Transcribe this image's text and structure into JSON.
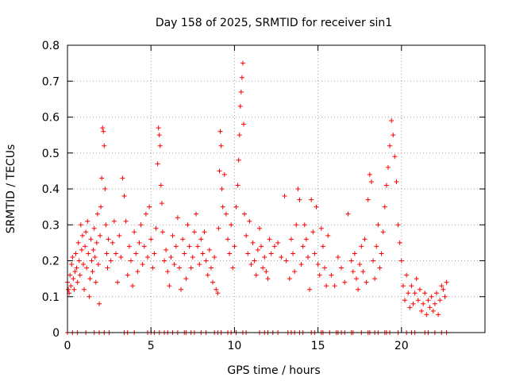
{
  "chart_data": {
    "type": "scatter",
    "title": "Day 158 of 2025, SRMTID for receiver sin1",
    "xlabel": "GPS time / hours",
    "ylabel": "SRMTID / TECUs",
    "xlim": [
      0,
      25
    ],
    "ylim": [
      0,
      0.8
    ],
    "xticks": [
      0,
      5,
      10,
      15,
      20
    ],
    "yticks": [
      0,
      0.1,
      0.2,
      0.3,
      0.4,
      0.5,
      0.6,
      0.7,
      0.8
    ],
    "xtick_labels": [
      "0",
      "5",
      "10",
      "15",
      "20"
    ],
    "ytick_labels": [
      "0",
      "0.1",
      "0.2",
      "0.3",
      "0.4",
      "0.5",
      "0.6",
      "0.7",
      "0.8"
    ],
    "grid": true,
    "marker": "+",
    "series": [
      {
        "name": "SRMTID",
        "color": "#ff0000",
        "points": [
          [
            0.0,
            0.14
          ],
          [
            0.05,
            0.12
          ],
          [
            0.1,
            0.11
          ],
          [
            0.15,
            0.16
          ],
          [
            0.2,
            0.13
          ],
          [
            0.25,
            0.19
          ],
          [
            0.3,
            0.21
          ],
          [
            0.35,
            0.15
          ],
          [
            0.4,
            0.12
          ],
          [
            0.45,
            0.17
          ],
          [
            0.5,
            0.22
          ],
          [
            0.55,
            0.18
          ],
          [
            0.6,
            0.14
          ],
          [
            0.65,
            0.25
          ],
          [
            0.7,
            0.2
          ],
          [
            0.75,
            0.16
          ],
          [
            0.8,
            0.3
          ],
          [
            0.85,
            0.23
          ],
          [
            0.9,
            0.27
          ],
          [
            0.95,
            0.19
          ],
          [
            1.0,
            0.12
          ],
          [
            1.05,
            0.24
          ],
          [
            1.1,
            0.28
          ],
          [
            1.15,
            0.18
          ],
          [
            1.2,
            0.31
          ],
          [
            1.25,
            0.22
          ],
          [
            1.3,
            0.1
          ],
          [
            1.35,
            0.15
          ],
          [
            1.4,
            0.26
          ],
          [
            1.45,
            0.2
          ],
          [
            1.5,
            0.17
          ],
          [
            1.55,
            0.23
          ],
          [
            1.6,
            0.29
          ],
          [
            1.65,
            0.21
          ],
          [
            1.7,
            0.14
          ],
          [
            1.75,
            0.25
          ],
          [
            1.8,
            0.33
          ],
          [
            1.85,
            0.19
          ],
          [
            1.9,
            0.08
          ],
          [
            1.95,
            0.27
          ],
          [
            2.0,
            0.35
          ],
          [
            2.05,
            0.43
          ],
          [
            2.1,
            0.57
          ],
          [
            2.15,
            0.56
          ],
          [
            2.2,
            0.52
          ],
          [
            2.25,
            0.4
          ],
          [
            2.3,
            0.3
          ],
          [
            2.35,
            0.22
          ],
          [
            2.4,
            0.18
          ],
          [
            2.45,
            0.26
          ],
          [
            2.6,
            0.2
          ],
          [
            2.7,
            0.25
          ],
          [
            2.8,
            0.31
          ],
          [
            2.9,
            0.22
          ],
          [
            3.0,
            0.14
          ],
          [
            3.1,
            0.27
          ],
          [
            3.2,
            0.21
          ],
          [
            3.3,
            0.43
          ],
          [
            3.4,
            0.38
          ],
          [
            3.5,
            0.31
          ],
          [
            3.6,
            0.16
          ],
          [
            3.7,
            0.24
          ],
          [
            3.8,
            0.2
          ],
          [
            3.9,
            0.13
          ],
          [
            4.0,
            0.28
          ],
          [
            4.1,
            0.22
          ],
          [
            4.2,
            0.17
          ],
          [
            4.3,
            0.25
          ],
          [
            4.4,
            0.3
          ],
          [
            4.5,
            0.19
          ],
          [
            4.6,
            0.24
          ],
          [
            4.7,
            0.33
          ],
          [
            4.8,
            0.21
          ],
          [
            4.9,
            0.35
          ],
          [
            5.0,
            0.26
          ],
          [
            5.1,
            0.18
          ],
          [
            5.2,
            0.22
          ],
          [
            5.3,
            0.29
          ],
          [
            5.4,
            0.47
          ],
          [
            5.45,
            0.57
          ],
          [
            5.5,
            0.55
          ],
          [
            5.55,
            0.52
          ],
          [
            5.6,
            0.41
          ],
          [
            5.65,
            0.36
          ],
          [
            5.7,
            0.28
          ],
          [
            5.8,
            0.2
          ],
          [
            5.9,
            0.23
          ],
          [
            6.0,
            0.17
          ],
          [
            6.1,
            0.13
          ],
          [
            6.2,
            0.21
          ],
          [
            6.3,
            0.27
          ],
          [
            6.4,
            0.19
          ],
          [
            6.5,
            0.24
          ],
          [
            6.6,
            0.32
          ],
          [
            6.7,
            0.18
          ],
          [
            6.8,
            0.12
          ],
          [
            6.9,
            0.26
          ],
          [
            7.0,
            0.22
          ],
          [
            7.1,
            0.15
          ],
          [
            7.2,
            0.3
          ],
          [
            7.3,
            0.24
          ],
          [
            7.4,
            0.18
          ],
          [
            7.5,
            0.21
          ],
          [
            7.6,
            0.28
          ],
          [
            7.7,
            0.33
          ],
          [
            7.8,
            0.24
          ],
          [
            7.9,
            0.19
          ],
          [
            8.0,
            0.26
          ],
          [
            8.1,
            0.22
          ],
          [
            8.2,
            0.28
          ],
          [
            8.3,
            0.2
          ],
          [
            8.4,
            0.16
          ],
          [
            8.5,
            0.23
          ],
          [
            8.6,
            0.18
          ],
          [
            8.7,
            0.14
          ],
          [
            8.8,
            0.21
          ],
          [
            8.9,
            0.12
          ],
          [
            9.0,
            0.11
          ],
          [
            9.05,
            0.29
          ],
          [
            9.1,
            0.45
          ],
          [
            9.15,
            0.56
          ],
          [
            9.2,
            0.52
          ],
          [
            9.25,
            0.4
          ],
          [
            9.3,
            0.35
          ],
          [
            9.4,
            0.44
          ],
          [
            9.5,
            0.33
          ],
          [
            9.6,
            0.26
          ],
          [
            9.7,
            0.22
          ],
          [
            9.8,
            0.3
          ],
          [
            9.9,
            0.18
          ],
          [
            10.0,
            0.24
          ],
          [
            10.1,
            0.35
          ],
          [
            10.2,
            0.41
          ],
          [
            10.25,
            0.48
          ],
          [
            10.3,
            0.55
          ],
          [
            10.35,
            0.63
          ],
          [
            10.4,
            0.67
          ],
          [
            10.45,
            0.71
          ],
          [
            10.5,
            0.75
          ],
          [
            10.55,
            0.58
          ],
          [
            10.6,
            0.33
          ],
          [
            10.7,
            0.27
          ],
          [
            10.8,
            0.22
          ],
          [
            10.9,
            0.31
          ],
          [
            11.0,
            0.19
          ],
          [
            11.1,
            0.25
          ],
          [
            11.2,
            0.2
          ],
          [
            11.3,
            0.16
          ],
          [
            11.4,
            0.23
          ],
          [
            11.5,
            0.29
          ],
          [
            11.6,
            0.24
          ],
          [
            11.7,
            0.18
          ],
          [
            11.8,
            0.21
          ],
          [
            11.9,
            0.17
          ],
          [
            12.0,
            0.15
          ],
          [
            12.1,
            0.26
          ],
          [
            12.2,
            0.22
          ],
          [
            12.4,
            0.24
          ],
          [
            12.6,
            0.25
          ],
          [
            12.8,
            0.21
          ],
          [
            13.0,
            0.38
          ],
          [
            13.1,
            0.2
          ],
          [
            13.3,
            0.15
          ],
          [
            13.4,
            0.26
          ],
          [
            13.5,
            0.22
          ],
          [
            13.6,
            0.17
          ],
          [
            13.7,
            0.3
          ],
          [
            13.8,
            0.4
          ],
          [
            13.9,
            0.37
          ],
          [
            14.0,
            0.19
          ],
          [
            14.1,
            0.24
          ],
          [
            14.2,
            0.3
          ],
          [
            14.3,
            0.26
          ],
          [
            14.4,
            0.21
          ],
          [
            14.5,
            0.12
          ],
          [
            14.6,
            0.37
          ],
          [
            14.7,
            0.28
          ],
          [
            14.8,
            0.22
          ],
          [
            14.9,
            0.35
          ],
          [
            15.0,
            0.19
          ],
          [
            15.1,
            0.16
          ],
          [
            15.2,
            0.29
          ],
          [
            15.3,
            0.24
          ],
          [
            15.4,
            0.18
          ],
          [
            15.5,
            0.13
          ],
          [
            15.6,
            0.27
          ],
          [
            15.8,
            0.16
          ],
          [
            16.0,
            0.13
          ],
          [
            16.2,
            0.21
          ],
          [
            16.4,
            0.18
          ],
          [
            16.6,
            0.14
          ],
          [
            16.8,
            0.33
          ],
          [
            17.0,
            0.2
          ],
          [
            17.1,
            0.17
          ],
          [
            17.2,
            0.22
          ],
          [
            17.3,
            0.15
          ],
          [
            17.4,
            0.12
          ],
          [
            17.5,
            0.19
          ],
          [
            17.6,
            0.24
          ],
          [
            17.7,
            0.17
          ],
          [
            17.8,
            0.26
          ],
          [
            17.9,
            0.14
          ],
          [
            18.0,
            0.37
          ],
          [
            18.1,
            0.44
          ],
          [
            18.2,
            0.42
          ],
          [
            18.3,
            0.2
          ],
          [
            18.4,
            0.15
          ],
          [
            18.5,
            0.24
          ],
          [
            18.6,
            0.3
          ],
          [
            18.7,
            0.18
          ],
          [
            18.8,
            0.22
          ],
          [
            18.9,
            0.28
          ],
          [
            19.0,
            0.35
          ],
          [
            19.1,
            0.41
          ],
          [
            19.2,
            0.46
          ],
          [
            19.3,
            0.52
          ],
          [
            19.4,
            0.59
          ],
          [
            19.5,
            0.55
          ],
          [
            19.6,
            0.49
          ],
          [
            19.7,
            0.42
          ],
          [
            19.8,
            0.3
          ],
          [
            19.9,
            0.25
          ],
          [
            20.0,
            0.2
          ],
          [
            20.1,
            0.13
          ],
          [
            20.2,
            0.09
          ],
          [
            20.3,
            0.16
          ],
          [
            20.4,
            0.11
          ],
          [
            20.5,
            0.07
          ],
          [
            20.6,
            0.13
          ],
          [
            20.7,
            0.08
          ],
          [
            20.8,
            0.11
          ],
          [
            20.9,
            0.15
          ],
          [
            21.0,
            0.09
          ],
          [
            21.1,
            0.12
          ],
          [
            21.2,
            0.06
          ],
          [
            21.3,
            0.08
          ],
          [
            21.4,
            0.11
          ],
          [
            21.5,
            0.05
          ],
          [
            21.6,
            0.09
          ],
          [
            21.7,
            0.07
          ],
          [
            21.8,
            0.1
          ],
          [
            21.9,
            0.06
          ],
          [
            22.0,
            0.08
          ],
          [
            22.1,
            0.11
          ],
          [
            22.2,
            0.05
          ],
          [
            22.3,
            0.09
          ],
          [
            22.4,
            0.13
          ],
          [
            22.5,
            0.12
          ],
          [
            22.6,
            0.1
          ],
          [
            22.7,
            0.14
          ]
        ],
        "zero_points": [
          0.0,
          0.3,
          0.6,
          1.1,
          1.6,
          1.9,
          2.2,
          2.5,
          3.4,
          3.6,
          4.0,
          4.8,
          5.0,
          5.2,
          5.5,
          5.8,
          6.0,
          6.3,
          6.6,
          7.0,
          7.1,
          7.4,
          7.6,
          8.0,
          8.3,
          8.8,
          9.0,
          9.2,
          9.6,
          9.8,
          10.1,
          10.5,
          10.7,
          11.5,
          11.8,
          12.0,
          12.3,
          12.6,
          13.2,
          13.4,
          13.6,
          13.9,
          14.1,
          14.6,
          14.8,
          15.2,
          15.3,
          15.7,
          16.1,
          16.2,
          16.4,
          16.6,
          17.0,
          17.1,
          17.6,
          18.0,
          18.1,
          18.4,
          18.6,
          19.0,
          19.1,
          19.3,
          19.8,
          20.3,
          20.6,
          20.8,
          21.4,
          21.6,
          22.0,
          22.4,
          22.7
        ]
      }
    ]
  }
}
